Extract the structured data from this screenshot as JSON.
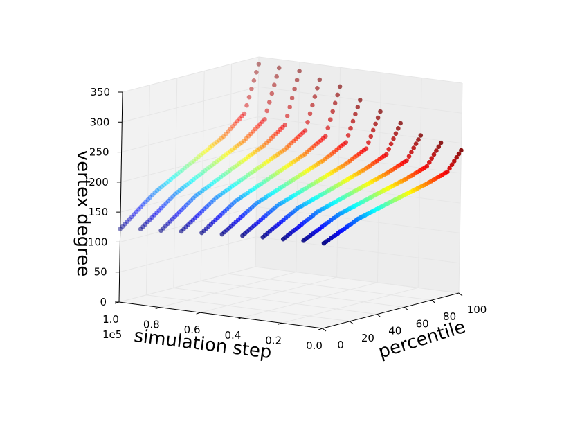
{
  "chart_data": {
    "type": "scatter",
    "projection": "3d",
    "title": "",
    "xlabel": "simulation step",
    "ylabel": "percentile",
    "zlabel": "vertex degree",
    "x_offset_label": "1e5",
    "xlim": [
      0,
      100000
    ],
    "ylim": [
      0,
      100
    ],
    "zlim": [
      0,
      350
    ],
    "x_tick_labels": [
      "0.0",
      "0.2",
      "0.4",
      "0.6",
      "0.8",
      "1.0"
    ],
    "y_tick_labels": [
      "0",
      "20",
      "40",
      "60",
      "80",
      "100"
    ],
    "z_tick_labels": [
      "0",
      "50",
      "100",
      "150",
      "200",
      "250",
      "300",
      "350"
    ],
    "grid": true,
    "colormap": "jet",
    "color_encodes": "percentile",
    "series": [
      {
        "x": 0,
        "min": 142,
        "p25": 168,
        "p50": 183,
        "p75": 197,
        "p90": 208,
        "max": 238
      },
      {
        "x": 10000,
        "min": 142,
        "p25": 170,
        "p50": 186,
        "p75": 201,
        "p90": 213,
        "max": 246
      },
      {
        "x": 20000,
        "min": 140,
        "p25": 171,
        "p50": 188,
        "p75": 205,
        "p90": 218,
        "max": 254
      },
      {
        "x": 30000,
        "min": 139,
        "p25": 172,
        "p50": 190,
        "p75": 209,
        "p90": 224,
        "max": 270
      },
      {
        "x": 40000,
        "min": 137,
        "p25": 172,
        "p50": 192,
        "p75": 212,
        "p90": 229,
        "max": 285
      },
      {
        "x": 50000,
        "min": 135,
        "p25": 172,
        "p50": 194,
        "p75": 216,
        "p90": 235,
        "max": 300
      },
      {
        "x": 60000,
        "min": 133,
        "p25": 172,
        "p50": 196,
        "p75": 220,
        "p90": 241,
        "max": 318
      },
      {
        "x": 70000,
        "min": 131,
        "p25": 172,
        "p50": 198,
        "p75": 223,
        "p90": 246,
        "max": 325
      },
      {
        "x": 80000,
        "min": 128,
        "p25": 171,
        "p50": 199,
        "p75": 226,
        "p90": 251,
        "max": 335
      },
      {
        "x": 90000,
        "min": 126,
        "p25": 170,
        "p50": 200,
        "p75": 229,
        "p90": 256,
        "max": 336
      },
      {
        "x": 100000,
        "min": 122,
        "p25": 168,
        "p50": 200,
        "p75": 232,
        "p90": 261,
        "max": 338
      }
    ],
    "pane_color": "#f2f2f2",
    "grid_color": "#e6e6e6"
  }
}
